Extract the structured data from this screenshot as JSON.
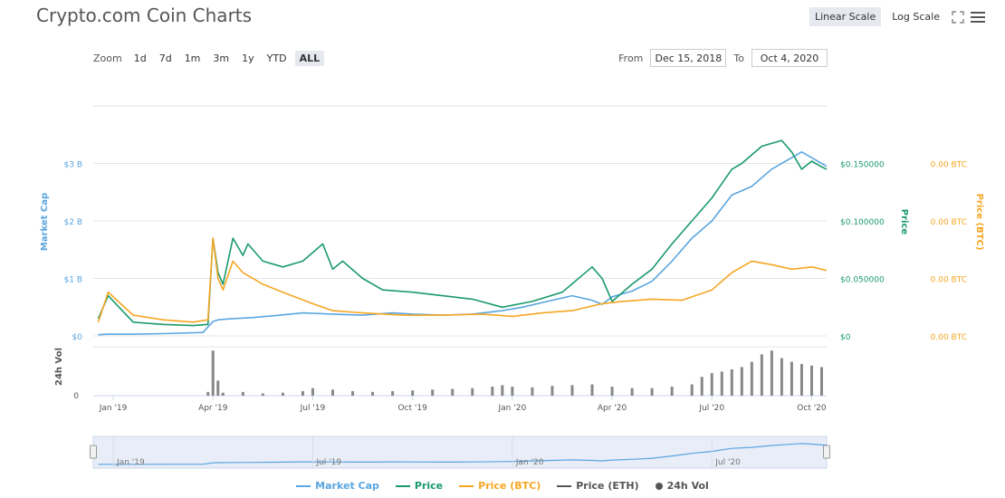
{
  "title": "Crypto.com Coin Charts",
  "scale": {
    "linear": "Linear Scale",
    "log": "Log Scale"
  },
  "icons": {
    "fullscreen": "fullscreen-icon",
    "menu": "menu-icon"
  },
  "zoom": {
    "label": "Zoom",
    "options": [
      "1d",
      "7d",
      "1m",
      "3m",
      "1y",
      "YTD",
      "ALL"
    ],
    "active": "ALL"
  },
  "range": {
    "from_label": "From",
    "from_value": "Dec 15, 2018",
    "to_label": "To",
    "to_value": "Oct 4, 2020"
  },
  "legend": [
    {
      "label": "Market Cap",
      "color": "#5aa6e0",
      "kind": "line"
    },
    {
      "label": "Price",
      "color": "#1a9a6c",
      "kind": "line"
    },
    {
      "label": "Price (BTC)",
      "color": "#f5a623",
      "kind": "line"
    },
    {
      "label": "Price (ETH)",
      "color": "#555555",
      "kind": "line"
    },
    {
      "label": "24h Vol",
      "color": "#555555",
      "kind": "dot"
    }
  ],
  "chart_data": {
    "type": "line",
    "x_axis": {
      "ticks": [
        "Jan '19",
        "Apr '19",
        "Jul '19",
        "Oct '19",
        "Jan '20",
        "Apr '20",
        "Jul '20",
        "Oct '20"
      ]
    },
    "left_axis": {
      "label": "Market Cap",
      "ticks": [
        "$0",
        "$1 B",
        "$2 B",
        "$3 B"
      ],
      "range": [
        0,
        4
      ]
    },
    "price_axis": {
      "label": "Price",
      "ticks": [
        "$0",
        "$0.050000",
        "$0.100000",
        "$0.150000"
      ],
      "range": [
        0,
        0.2
      ]
    },
    "btc_axis": {
      "label": "Price (BTC)",
      "ticks": [
        "0.00 BTC",
        "0.00 BTC",
        "0.00 BTC",
        "0.00 BTC"
      ]
    },
    "volume_axis": {
      "label": "24h Vol",
      "ticks": [
        "0"
      ]
    },
    "navigator_ticks": [
      "Jan '19",
      "Jul '19",
      "Jan '20",
      "Jul '20"
    ],
    "t_range": [
      -0.2,
      7.15
    ],
    "series": [
      {
        "name": "Market Cap",
        "color": "#5aa6e0",
        "t": [
          -0.15,
          -0.05,
          0.2,
          0.5,
          0.9,
          1.0,
          1.05,
          1.2,
          1.4,
          1.6,
          1.9,
          2.2,
          2.5,
          2.8,
          3.0,
          3.3,
          3.6,
          3.9,
          4.1,
          4.4,
          4.6,
          4.8,
          4.9,
          5.0,
          5.2,
          5.4,
          5.6,
          5.8,
          6.0,
          6.2,
          6.4,
          6.6,
          6.9,
          7.05,
          7.15
        ],
        "v": [
          0.02,
          0.03,
          0.03,
          0.04,
          0.06,
          0.25,
          0.28,
          0.3,
          0.32,
          0.35,
          0.4,
          0.38,
          0.36,
          0.4,
          0.38,
          0.36,
          0.38,
          0.44,
          0.5,
          0.62,
          0.7,
          0.62,
          0.55,
          0.68,
          0.78,
          0.95,
          1.3,
          1.7,
          2.0,
          2.45,
          2.6,
          2.9,
          3.2,
          3.05,
          2.95
        ]
      },
      {
        "name": "Price",
        "color": "#1a9a6c",
        "t": [
          -0.15,
          -0.05,
          0.2,
          0.5,
          0.8,
          0.95,
          1.0,
          1.05,
          1.1,
          1.2,
          1.3,
          1.35,
          1.5,
          1.7,
          1.9,
          2.1,
          2.2,
          2.3,
          2.5,
          2.7,
          3.0,
          3.3,
          3.6,
          3.9,
          4.2,
          4.5,
          4.8,
          4.9,
          5.0,
          5.2,
          5.4,
          5.6,
          5.8,
          6.0,
          6.2,
          6.3,
          6.5,
          6.7,
          6.8,
          6.9,
          7.0,
          7.1,
          7.15
        ],
        "v": [
          0.015,
          0.035,
          0.012,
          0.01,
          0.009,
          0.01,
          0.085,
          0.055,
          0.045,
          0.085,
          0.07,
          0.08,
          0.065,
          0.06,
          0.065,
          0.08,
          0.058,
          0.065,
          0.05,
          0.04,
          0.038,
          0.035,
          0.032,
          0.025,
          0.03,
          0.038,
          0.06,
          0.05,
          0.03,
          0.045,
          0.058,
          0.08,
          0.1,
          0.12,
          0.145,
          0.15,
          0.165,
          0.17,
          0.16,
          0.145,
          0.152,
          0.147,
          0.145
        ]
      },
      {
        "name": "Price (BTC)",
        "color": "#f5a623",
        "t": [
          -0.15,
          -0.05,
          0.2,
          0.5,
          0.8,
          0.95,
          1.0,
          1.05,
          1.1,
          1.2,
          1.3,
          1.5,
          1.7,
          2.0,
          2.2,
          2.5,
          2.9,
          3.3,
          3.7,
          4.0,
          4.3,
          4.6,
          4.9,
          5.1,
          5.4,
          5.7,
          6.0,
          6.2,
          6.4,
          6.6,
          6.8,
          7.0,
          7.15
        ],
        "v": [
          0.012,
          0.038,
          0.018,
          0.014,
          0.012,
          0.014,
          0.085,
          0.05,
          0.04,
          0.065,
          0.055,
          0.045,
          0.038,
          0.028,
          0.022,
          0.02,
          0.018,
          0.018,
          0.019,
          0.017,
          0.02,
          0.022,
          0.028,
          0.03,
          0.032,
          0.031,
          0.04,
          0.055,
          0.065,
          0.062,
          0.058,
          0.06,
          0.057
        ]
      }
    ],
    "volume": {
      "t": [
        0.95,
        1.0,
        1.05,
        1.1,
        1.3,
        1.5,
        1.7,
        1.9,
        2.0,
        2.2,
        2.4,
        2.6,
        2.8,
        3.0,
        3.2,
        3.4,
        3.6,
        3.8,
        3.9,
        4.0,
        4.2,
        4.4,
        4.6,
        4.8,
        5.0,
        5.2,
        5.4,
        5.6,
        5.8,
        5.9,
        6.0,
        6.1,
        6.2,
        6.3,
        6.4,
        6.5,
        6.6,
        6.7,
        6.8,
        6.9,
        7.0,
        7.1
      ],
      "v": [
        0.05,
        0.6,
        0.2,
        0.04,
        0.05,
        0.03,
        0.04,
        0.06,
        0.1,
        0.08,
        0.06,
        0.05,
        0.06,
        0.07,
        0.08,
        0.09,
        0.1,
        0.12,
        0.14,
        0.12,
        0.11,
        0.13,
        0.14,
        0.15,
        0.12,
        0.1,
        0.1,
        0.12,
        0.15,
        0.25,
        0.3,
        0.32,
        0.35,
        0.38,
        0.45,
        0.55,
        0.6,
        0.5,
        0.45,
        0.42,
        0.4,
        0.38
      ]
    }
  }
}
